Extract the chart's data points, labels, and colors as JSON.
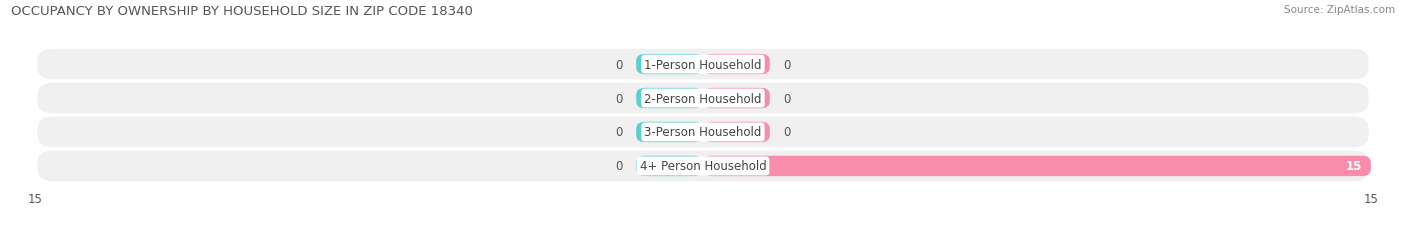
{
  "title": "OCCUPANCY BY OWNERSHIP BY HOUSEHOLD SIZE IN ZIP CODE 18340",
  "source": "Source: ZipAtlas.com",
  "categories": [
    "1-Person Household",
    "2-Person Household",
    "3-Person Household",
    "4+ Person Household"
  ],
  "owner_values": [
    0,
    0,
    0,
    0
  ],
  "renter_values": [
    0,
    0,
    0,
    15
  ],
  "owner_color": "#5ecfcf",
  "renter_color": "#f78dab",
  "axis_max": 15,
  "title_fontsize": 9.5,
  "source_fontsize": 7.5,
  "label_fontsize": 8.5,
  "tick_fontsize": 8.5,
  "bar_height": 0.6,
  "row_bg_color": "#f0f0f0",
  "stub_size": 1.5,
  "value_label_color": "#555555",
  "value_label_white": "#ffffff",
  "category_label_color": "#444444"
}
